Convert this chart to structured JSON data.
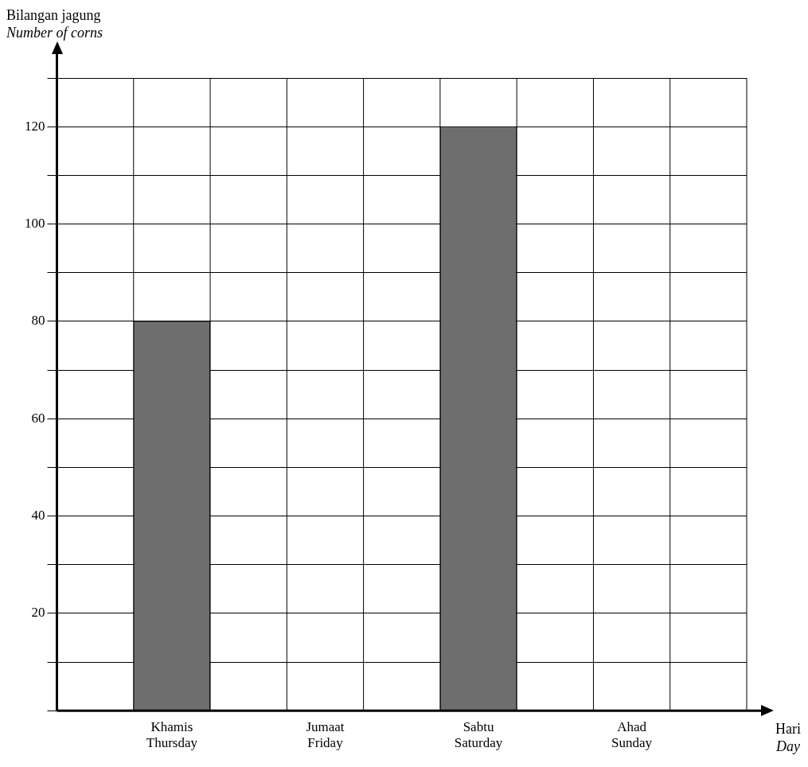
{
  "chart_data": {
    "type": "bar",
    "xlabel": "Hari\nDay",
    "ylabel": "Bilangan jagung\nNumber of corns",
    "categories": [
      "Khamis\nThursday",
      "Jumaat\nFriday",
      "Sabtu\nSaturday",
      "Ahad\nSunday"
    ],
    "values": [
      80,
      null,
      120,
      null
    ],
    "color": "#6e6e6e",
    "ylim": [
      0,
      130
    ],
    "yticks": [
      {
        "value": 0,
        "label": null
      },
      {
        "value": 10,
        "label": null
      },
      20,
      {
        "value": 30,
        "label": null
      },
      40,
      {
        "value": 50,
        "label": null
      },
      60,
      {
        "value": 70,
        "label": null
      },
      80,
      {
        "value": 90,
        "label": null
      },
      100,
      {
        "value": 110,
        "label": null
      },
      120,
      {
        "value": 130,
        "label": null
      }
    ],
    "grid": true,
    "legend": false
  }
}
